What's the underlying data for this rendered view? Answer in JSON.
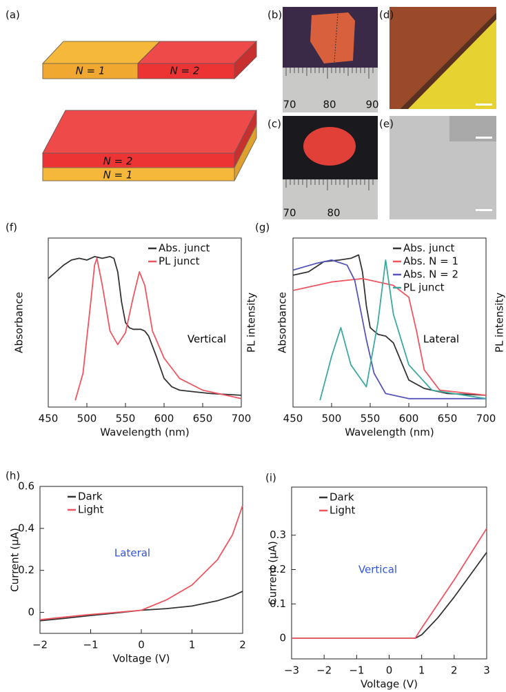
{
  "panels": {
    "a": "(a)",
    "b": "(b)",
    "c": "(c)",
    "d": "(d)",
    "e": "(e)"
  },
  "diagram": {
    "top_left": "N = 1",
    "top_right": "N = 2",
    "bottom_upper": "N = 2",
    "bottom_lower": "N = 1"
  },
  "rulers": {
    "b": [
      "70",
      "80",
      "90"
    ],
    "c": [
      "70",
      "80"
    ]
  },
  "chart_data": [
    {
      "type": "line",
      "label": "(f)",
      "xlabel": "Wavelength (nm)",
      "ylabel": "Absorbance",
      "y2label": "PL intensity",
      "annotation": "Vertical",
      "annotation_color": "#000000",
      "legend": "upper right",
      "xlim": [
        450,
        700
      ],
      "xticks": [
        450,
        500,
        550,
        600,
        650,
        700
      ],
      "ylim": [
        0,
        1
      ],
      "series": [
        {
          "name": "Abs. junct",
          "color": "#333333",
          "x": [
            450,
            460,
            470,
            480,
            490,
            500,
            510,
            520,
            530,
            535,
            540,
            545,
            550,
            555,
            560,
            570,
            575,
            580,
            590,
            600,
            610,
            620,
            640,
            660,
            680,
            700
          ],
          "values": [
            0.76,
            0.8,
            0.84,
            0.87,
            0.88,
            0.87,
            0.89,
            0.88,
            0.89,
            0.88,
            0.8,
            0.62,
            0.5,
            0.47,
            0.46,
            0.46,
            0.45,
            0.42,
            0.3,
            0.17,
            0.12,
            0.1,
            0.09,
            0.08,
            0.075,
            0.07
          ]
        },
        {
          "name": "PL junct",
          "color": "#ee5560",
          "x": [
            485,
            495,
            505,
            510,
            513,
            520,
            530,
            540,
            550,
            560,
            568,
            575,
            585,
            600,
            620,
            650,
            700
          ],
          "values": [
            0.04,
            0.2,
            0.62,
            0.84,
            0.88,
            0.72,
            0.45,
            0.37,
            0.44,
            0.65,
            0.8,
            0.72,
            0.45,
            0.29,
            0.17,
            0.1,
            0.05
          ]
        }
      ]
    },
    {
      "type": "line",
      "label": "(g)",
      "xlabel": "Wavelength (nm)",
      "ylabel": "Absorbance",
      "y2label": "PL intensity",
      "annotation": "Lateral",
      "annotation_color": "#000000",
      "legend": "upper right",
      "xlim": [
        450,
        700
      ],
      "xticks": [
        450,
        500,
        550,
        600,
        650,
        700
      ],
      "ylim": [
        0,
        1
      ],
      "series": [
        {
          "name": "Abs. junct",
          "color": "#333333",
          "x": [
            450,
            470,
            490,
            510,
            525,
            535,
            540,
            545,
            550,
            560,
            570,
            580,
            590,
            600,
            620,
            650,
            700
          ],
          "values": [
            0.78,
            0.8,
            0.86,
            0.87,
            0.88,
            0.9,
            0.8,
            0.6,
            0.47,
            0.43,
            0.42,
            0.38,
            0.27,
            0.16,
            0.11,
            0.08,
            0.07
          ]
        },
        {
          "name": "Abs. N = 1",
          "color": "#ee5560",
          "x": [
            450,
            500,
            540,
            580,
            600,
            610,
            620,
            640,
            700
          ],
          "values": [
            0.69,
            0.74,
            0.76,
            0.72,
            0.65,
            0.45,
            0.22,
            0.1,
            0.07
          ]
        },
        {
          "name": "Abs. N = 2",
          "color": "#5555bb",
          "x": [
            450,
            480,
            500,
            520,
            530,
            545,
            555,
            570,
            600,
            700
          ],
          "values": [
            0.81,
            0.85,
            0.87,
            0.84,
            0.75,
            0.4,
            0.2,
            0.08,
            0.05,
            0.05
          ]
        },
        {
          "name": "PL junct",
          "color": "#3aaaa0",
          "x": [
            485,
            500,
            512,
            525,
            545,
            560,
            570,
            580,
            600,
            630,
            700
          ],
          "values": [
            0.04,
            0.3,
            0.47,
            0.25,
            0.12,
            0.5,
            0.87,
            0.55,
            0.25,
            0.1,
            0.05
          ]
        }
      ]
    },
    {
      "type": "line",
      "label": "(h)",
      "xlabel": "Voltage (V)",
      "ylabel": "Current (μA)",
      "annotation": "Lateral",
      "annotation_color": "#3355dd",
      "legend": "upper left",
      "xlim": [
        -2,
        2
      ],
      "xticks": [
        {
          "value": -2,
          "label": "−2"
        },
        {
          "value": -1,
          "label": "−1"
        },
        0,
        1,
        2
      ],
      "ylim": [
        -0.1,
        0.6
      ],
      "yticks": [
        0,
        0.2,
        0.4,
        0.6
      ],
      "x": [
        -2,
        -1.5,
        -1,
        -0.5,
        0,
        0.5,
        1,
        1.5,
        1.8,
        2
      ],
      "series": [
        {
          "name": "Dark",
          "color": "#333333",
          "values": [
            -0.04,
            -0.028,
            -0.015,
            -0.003,
            0.01,
            0.018,
            0.03,
            0.055,
            0.078,
            0.1
          ]
        },
        {
          "name": "Light",
          "color": "#ee5560",
          "values": [
            -0.035,
            -0.022,
            -0.01,
            0.0,
            0.01,
            0.06,
            0.13,
            0.25,
            0.37,
            0.51
          ]
        }
      ]
    },
    {
      "type": "line",
      "label": "(i)",
      "xlabel": "Voltage (V)",
      "ylabel": "Current (μA)",
      "annotation": "Vertical",
      "annotation_color": "#3355dd",
      "legend": "upper left",
      "xlim": [
        -3,
        3
      ],
      "xticks": [
        {
          "value": -3,
          "label": "−3"
        },
        {
          "value": -2,
          "label": "−2"
        },
        {
          "value": -1,
          "label": "−1"
        },
        0,
        1,
        2,
        3
      ],
      "ylim": [
        -0.06,
        0.44
      ],
      "yticks": [
        0,
        0.1,
        0.2,
        0.3
      ],
      "x": [
        -3,
        -2,
        -1,
        0,
        0.8,
        1,
        1.5,
        2,
        2.5,
        3
      ],
      "series": [
        {
          "name": "Dark",
          "color": "#333333",
          "values": [
            0,
            0,
            0,
            0,
            0,
            0.01,
            0.06,
            0.12,
            0.185,
            0.25
          ]
        },
        {
          "name": "Light",
          "color": "#ee5560",
          "values": [
            0,
            0,
            0,
            0,
            0,
            0.03,
            0.1,
            0.17,
            0.245,
            0.32
          ]
        }
      ]
    }
  ]
}
